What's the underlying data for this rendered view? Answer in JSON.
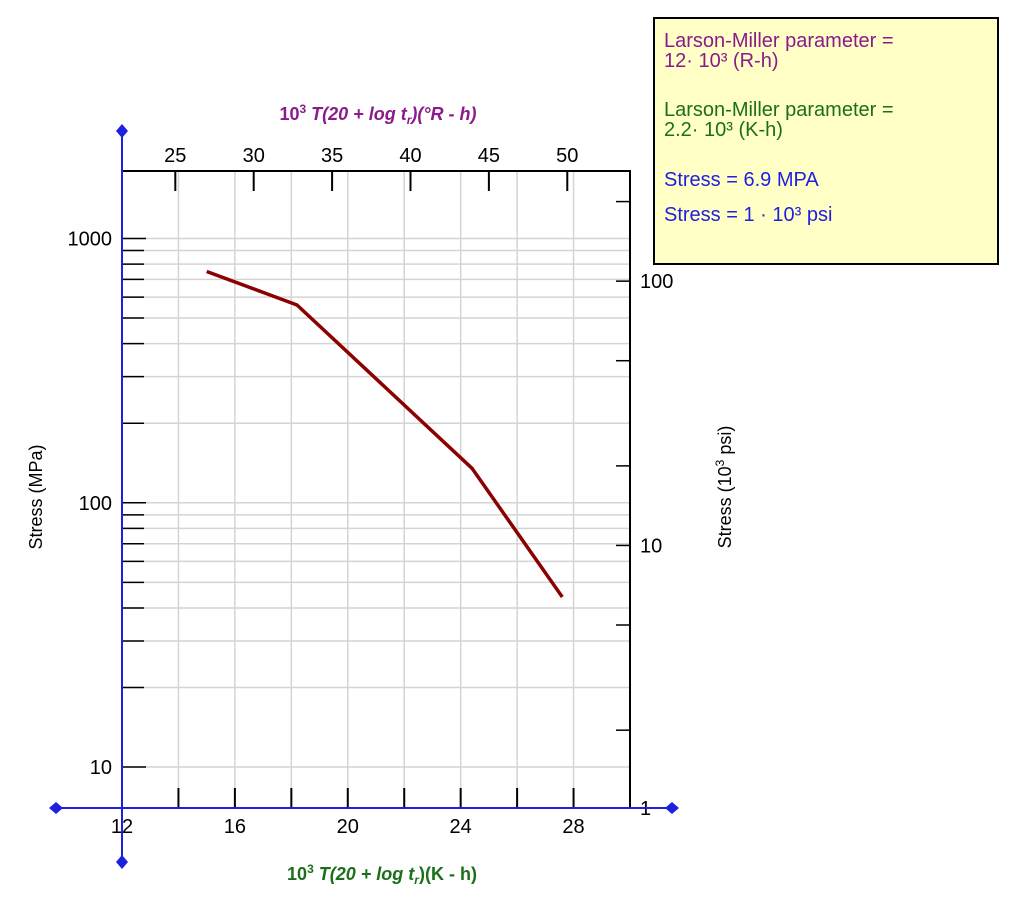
{
  "chart_data": {
    "type": "line",
    "top_axis": {
      "title_prefix": "10",
      "title_sup": "3",
      "title_main": " T(20 + log ",
      "title_t": "t",
      "title_r": "r",
      "title_end": ")(°R - h)",
      "ticks": [
        25,
        30,
        35,
        40,
        45,
        50
      ],
      "color": "#8b1a8b"
    },
    "bottom_axis": {
      "title_prefix": "10",
      "title_sup": "3",
      "title_main": " T(20 + log ",
      "title_t": "t",
      "title_r": "r",
      "title_end": ")(K - h)",
      "ticks": [
        12,
        16,
        20,
        24,
        28
      ],
      "range": [
        12,
        30
      ],
      "color": "#1b6f1b"
    },
    "left_axis": {
      "label": "Stress (MPa)",
      "ticks": [
        10,
        100,
        1000
      ],
      "scale": "log",
      "range": [
        7,
        1800
      ]
    },
    "right_axis": {
      "label_prefix": "Stress (10",
      "label_sup": "3",
      "label_suffix": " psi)",
      "ticks": [
        1,
        10,
        100
      ],
      "scale": "log"
    },
    "series": [
      {
        "color": "#8b0000",
        "x": [
          15.0,
          18.2,
          24.4,
          27.6
        ],
        "y": [
          750,
          560,
          135,
          44
        ]
      }
    ],
    "grid": true
  },
  "info_box": {
    "line1": "Larson-Miller parameter =\n12· 10³ (R-h)",
    "line2": "Larson-Miller parameter =\n2.2· 10³ (K-h)",
    "line3": "Stress = 6.9 MPA",
    "line4": "Stress = 1 · 10³ psi"
  }
}
